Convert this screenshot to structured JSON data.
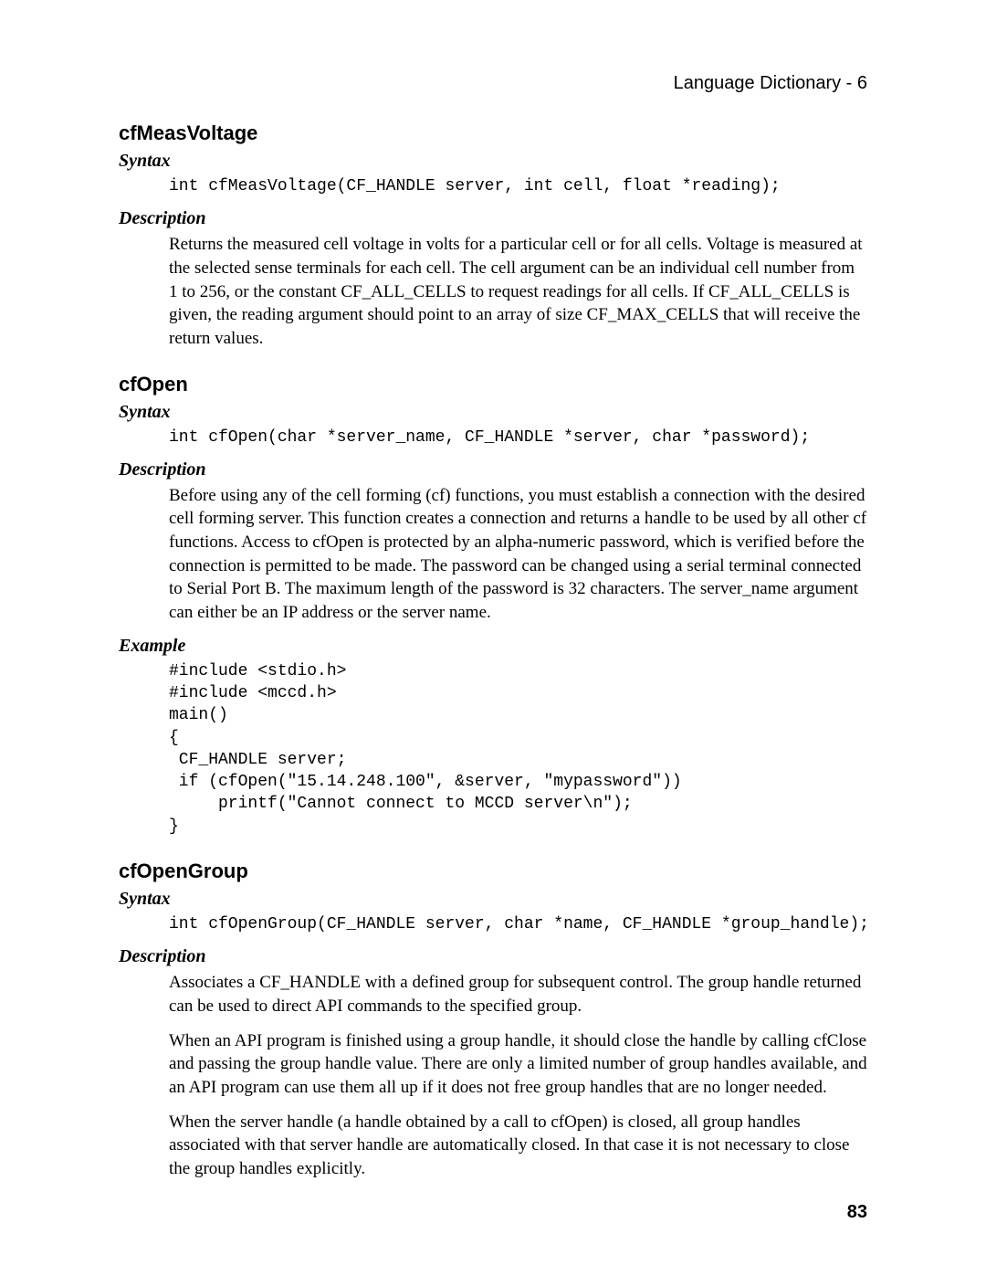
{
  "header": {
    "right": "Language Dictionary - 6"
  },
  "sections": [
    {
      "title": "cfMeasVoltage",
      "syntax_heading": "Syntax",
      "syntax_code": "int cfMeasVoltage(CF_HANDLE server, int cell, float *reading);",
      "description_heading": "Description",
      "description_paragraphs": [
        "Returns the measured cell voltage in volts for a particular cell or for all cells. Voltage is measured at the selected sense terminals for each cell. The cell argument can be an individual cell number from 1 to 256, or the constant CF_ALL_CELLS to request readings for all cells. If CF_ALL_CELLS is given, the reading argument should point to an array of size CF_MAX_CELLS that will receive the return values."
      ]
    },
    {
      "title": "cfOpen",
      "syntax_heading": "Syntax",
      "syntax_code": "int cfOpen(char *server_name, CF_HANDLE *server, char *password);",
      "description_heading": "Description",
      "description_paragraphs": [
        "Before using any of the cell forming (cf) functions, you must establish a connection with the desired cell forming server. This function creates a connection and returns a handle to be used by all other cf functions. Access to cfOpen is protected by an alpha-numeric password, which is verified before the connection is permitted to be made. The password can be changed using a serial terminal connected to Serial Port B. The maximum length of the password is 32 characters. The server_name argument can either be an IP address or the server name."
      ],
      "example_heading": "Example",
      "example_code": "#include <stdio.h>\n#include <mccd.h>\nmain()\n{\n CF_HANDLE server;\n if (cfOpen(\"15.14.248.100\", &server, \"mypassword\"))\n     printf(\"Cannot connect to MCCD server\\n\");\n}"
    },
    {
      "title": "cfOpenGroup",
      "syntax_heading": "Syntax",
      "syntax_code": "int cfOpenGroup(CF_HANDLE server, char *name, CF_HANDLE *group_handle);",
      "description_heading": "Description",
      "description_paragraphs": [
        "Associates a CF_HANDLE with a defined group for subsequent control. The group handle returned can be used to direct API commands to the specified group.",
        "When an API program is finished using a group handle, it should close the handle by calling cfClose and passing the group handle value. There are only a limited number of group handles available, and an API program can use them all up if it does not free group handles that are no longer needed.",
        "When the server handle (a handle obtained by a call to cfOpen) is closed, all group handles associated with that server handle are automatically closed. In that case it is not necessary to close the group handles explicitly."
      ]
    }
  ],
  "page_number": "83"
}
